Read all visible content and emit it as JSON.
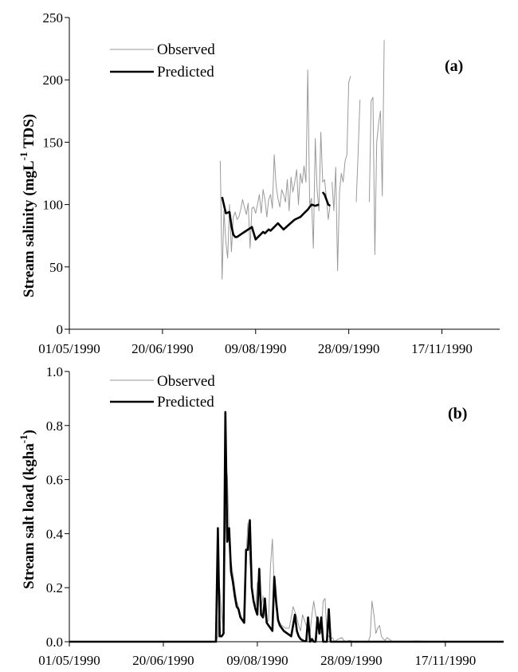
{
  "chart_data": [
    {
      "type": "line",
      "panel_label": "(a)",
      "ylabel": "Stream salinity (mgL",
      "ylabel_sup": "-1",
      "ylabel_tail": " TDS)",
      "ylim": [
        0,
        250
      ],
      "y_ticks": [
        "0",
        "50",
        "100",
        "150",
        "200",
        "250"
      ],
      "xlim": [
        "1990-05-01",
        "1990-12-18"
      ],
      "x_ticks": [
        "01/05/1990",
        "20/06/1990",
        "09/08/1990",
        "28/09/1990",
        "17/11/1990"
      ],
      "grid": false,
      "legend_position": "top-left",
      "series": [
        {
          "name": "Observed",
          "style": "thin-gray",
          "color": "#9a9a9a",
          "segments": [
            {
              "x": [
                "1990-07-21",
                "1990-07-22",
                "1990-07-23",
                "1990-07-24",
                "1990-07-25",
                "1990-07-26",
                "1990-07-27",
                "1990-07-28",
                "1990-07-29",
                "1990-07-30",
                "1990-07-31",
                "1990-08-01",
                "1990-08-02",
                "1990-08-03",
                "1990-08-04",
                "1990-08-05",
                "1990-08-06",
                "1990-08-07",
                "1990-08-08",
                "1990-08-09",
                "1990-08-10",
                "1990-08-11",
                "1990-08-12",
                "1990-08-13",
                "1990-08-14",
                "1990-08-15",
                "1990-08-16",
                "1990-08-17",
                "1990-08-18",
                "1990-08-19",
                "1990-08-20",
                "1990-08-21",
                "1990-08-22",
                "1990-08-23",
                "1990-08-24",
                "1990-08-25",
                "1990-08-26",
                "1990-08-27",
                "1990-08-28",
                "1990-08-29",
                "1990-08-30",
                "1990-08-31",
                "1990-09-01",
                "1990-09-02",
                "1990-09-03",
                "1990-09-04",
                "1990-09-05",
                "1990-09-06",
                "1990-09-07",
                "1990-09-08",
                "1990-09-09",
                "1990-09-10",
                "1990-09-11",
                "1990-09-12",
                "1990-09-13",
                "1990-09-14",
                "1990-09-15",
                "1990-09-16",
                "1990-09-17",
                "1990-09-18"
              ],
              "y": [
                135,
                40,
                95,
                70,
                57,
                100,
                62,
                90,
                94,
                88,
                90,
                96,
                104,
                98,
                92,
                101,
                65,
                97,
                98,
                93,
                100,
                108,
                93,
                112,
                104,
                90,
                104,
                108,
                97,
                140,
                115,
                105,
                98,
                112,
                108,
                102,
                120,
                95,
                122,
                110,
                118,
                128,
                100,
                125,
                117,
                131,
                118,
                208,
                100,
                105,
                65,
                153,
                112,
                95,
                158,
                118,
                120,
                105,
                88,
                100
              ]
            },
            {
              "x": [
                "1990-09-19",
                "1990-09-20",
                "1990-09-21",
                "1990-09-22",
                "1990-09-23",
                "1990-09-24",
                "1990-09-25",
                "1990-09-26",
                "1990-09-27",
                "1990-09-28",
                "1990-09-29"
              ],
              "y": [
                118,
                95,
                130,
                47,
                110,
                125,
                118,
                135,
                140,
                198,
                203
              ]
            },
            {
              "x": [
                "1990-10-02",
                "1990-10-03",
                "1990-10-04"
              ],
              "y": [
                102,
                140,
                184
              ]
            },
            {
              "x": [
                "1990-10-09",
                "1990-10-10",
                "1990-10-11",
                "1990-10-12",
                "1990-10-13",
                "1990-10-14",
                "1990-10-15",
                "1990-10-16",
                "1990-10-17"
              ],
              "y": [
                102,
                183,
                186,
                60,
                150,
                165,
                175,
                107,
                232
              ]
            }
          ]
        },
        {
          "name": "Predicted",
          "style": "thick-black",
          "color": "#000000",
          "segments": [
            {
              "x": [
                "1990-07-22",
                "1990-07-24",
                "1990-07-26",
                "1990-07-27",
                "1990-07-28",
                "1990-07-29",
                "1990-07-30",
                "1990-08-01",
                "1990-08-03",
                "1990-08-05",
                "1990-08-07",
                "1990-08-09",
                "1990-08-11",
                "1990-08-13",
                "1990-08-14",
                "1990-08-16",
                "1990-08-17",
                "1990-08-19",
                "1990-08-21",
                "1990-08-24",
                "1990-08-27",
                "1990-08-30",
                "1990-09-02",
                "1990-09-04",
                "1990-09-06",
                "1990-09-08",
                "1990-09-10",
                "1990-09-12"
              ],
              "y": [
                106,
                93,
                94,
                83,
                76,
                74,
                74,
                76,
                78,
                80,
                82,
                72,
                75,
                78,
                77,
                80,
                79,
                82,
                85,
                80,
                84,
                88,
                90,
                93,
                96,
                100,
                99,
                100
              ]
            },
            {
              "x": [
                "1990-09-14",
                "1990-09-15",
                "1990-09-16",
                "1990-09-17",
                "1990-09-18"
              ],
              "y": [
                110,
                108,
                104,
                100,
                99
              ]
            }
          ]
        }
      ]
    },
    {
      "type": "line",
      "panel_label": "(b)",
      "ylabel": "Stream salt load (kgha",
      "ylabel_sup": "-1",
      "ylabel_tail": ")",
      "ylim": [
        0,
        1.0
      ],
      "y_ticks": [
        "0.0",
        "0.2",
        "0.4",
        "0.6",
        "0.8",
        "1.0"
      ],
      "xlim": [
        "1990-05-01",
        "1990-12-18"
      ],
      "x_ticks": [
        "01/05/1990",
        "20/06/1990",
        "09/08/1990",
        "28/09/1990",
        "17/11/1990"
      ],
      "grid": false,
      "legend_position": "top-left",
      "series": [
        {
          "name": "Observed",
          "style": "thin-gray",
          "color": "#9a9a9a",
          "segments": [
            {
              "x": [
                "1990-05-01",
                "1990-07-18",
                "1990-07-19",
                "1990-07-20",
                "1990-07-21",
                "1990-07-22",
                "1990-07-23",
                "1990-07-24",
                "1990-07-25",
                "1990-07-26",
                "1990-07-27",
                "1990-07-28",
                "1990-07-29",
                "1990-07-30",
                "1990-07-31",
                "1990-08-02",
                "1990-08-03",
                "1990-08-04",
                "1990-08-05",
                "1990-08-06",
                "1990-08-07",
                "1990-08-08",
                "1990-08-09",
                "1990-08-10",
                "1990-08-11",
                "1990-08-12",
                "1990-08-13",
                "1990-08-14",
                "1990-08-15",
                "1990-08-16",
                "1990-08-17",
                "1990-08-18",
                "1990-08-19",
                "1990-08-20",
                "1990-08-21",
                "1990-08-22",
                "1990-08-24",
                "1990-08-26",
                "1990-08-28",
                "1990-08-30",
                "1990-08-31",
                "1990-09-01",
                "1990-09-02",
                "1990-09-04",
                "1990-09-05",
                "1990-09-06",
                "1990-09-07",
                "1990-09-08",
                "1990-09-09",
                "1990-09-10",
                "1990-09-11",
                "1990-09-12",
                "1990-09-13",
                "1990-09-14",
                "1990-09-15",
                "1990-09-16",
                "1990-09-17",
                "1990-09-18",
                "1990-09-19",
                "1990-09-21",
                "1990-09-23",
                "1990-09-24",
                "1990-09-25",
                "1990-09-27",
                "1990-09-29",
                "1990-10-01",
                "1990-10-03",
                "1990-10-06",
                "1990-10-07",
                "1990-10-08",
                "1990-10-09",
                "1990-10-10",
                "1990-10-11",
                "1990-10-12",
                "1990-10-13",
                "1990-10-14",
                "1990-10-15",
                "1990-10-16",
                "1990-10-17",
                "1990-10-18",
                "1990-10-20",
                "1990-10-25",
                "1990-10-28",
                "1990-11-01",
                "1990-11-10",
                "1990-11-20",
                "1990-12-01",
                "1990-12-18"
              ],
              "y": [
                0,
                0,
                0.02,
                0.2,
                0.1,
                0.05,
                0.4,
                0.62,
                0.4,
                0.3,
                0.25,
                0.2,
                0.15,
                0.13,
                0.1,
                0.07,
                0.32,
                0.44,
                0.3,
                0.2,
                0.15,
                0.12,
                0.22,
                0.2,
                0.12,
                0.17,
                0.1,
                0.07,
                0.08,
                0.28,
                0.38,
                0.2,
                0.12,
                0.09,
                0.07,
                0.06,
                0.05,
                0.05,
                0.13,
                0.09,
                0.06,
                0.04,
                0.1,
                0.06,
                0.05,
                0.03,
                0.1,
                0.15,
                0.1,
                0.07,
                0.05,
                0.03,
                0.15,
                0.16,
                0.03,
                0.02,
                0.01,
                0.015,
                0,
                0.01,
                0.015,
                0.005,
                0,
                0.005,
                0,
                0,
                0,
                0,
                0,
                0.02,
                0.15,
                0.1,
                0.03,
                0.05,
                0.06,
                0.02,
                0.01,
                0.005,
                0.015,
                0.01,
                0,
                0.002,
                0,
                0.003,
                0,
                0,
                0,
                0
              ]
            }
          ]
        },
        {
          "name": "Predicted",
          "style": "thick-black",
          "color": "#000000",
          "segments": [
            {
              "x": [
                "1990-05-01",
                "1990-07-18",
                "1990-07-19",
                "1990-07-20",
                "1990-07-21",
                "1990-07-22",
                "1990-07-23",
                "1990-07-24",
                "1990-07-25",
                "1990-07-26",
                "1990-07-27",
                "1990-07-28",
                "1990-07-29",
                "1990-07-30",
                "1990-07-31",
                "1990-08-01",
                "1990-08-02",
                "1990-08-03",
                "1990-08-04",
                "1990-08-05",
                "1990-08-06",
                "1990-08-07",
                "1990-08-08",
                "1990-08-09",
                "1990-08-10",
                "1990-08-11",
                "1990-08-12",
                "1990-08-13",
                "1990-08-14",
                "1990-08-15",
                "1990-08-16",
                "1990-08-17",
                "1990-08-18",
                "1990-08-19",
                "1990-08-20",
                "1990-08-21",
                "1990-08-22",
                "1990-08-23",
                "1990-08-25",
                "1990-08-27",
                "1990-08-29",
                "1990-08-30",
                "1990-08-31",
                "1990-09-01",
                "1990-09-02",
                "1990-09-03",
                "1990-09-04",
                "1990-09-05",
                "1990-09-06",
                "1990-09-07",
                "1990-09-08",
                "1990-09-09",
                "1990-09-10",
                "1990-09-11",
                "1990-09-12",
                "1990-09-13",
                "1990-09-14",
                "1990-09-15",
                "1990-09-16",
                "1990-09-17",
                "1990-12-18"
              ],
              "y": [
                0,
                0,
                0.42,
                0.02,
                0.02,
                0.03,
                0.85,
                0.37,
                0.42,
                0.26,
                0.22,
                0.17,
                0.13,
                0.12,
                0.09,
                0.08,
                0.07,
                0.34,
                0.34,
                0.45,
                0.2,
                0.15,
                0.12,
                0.1,
                0.27,
                0.1,
                0.09,
                0.16,
                0.07,
                0.06,
                0.05,
                0.04,
                0.24,
                0.15,
                0.08,
                0.06,
                0.05,
                0.04,
                0.03,
                0.02,
                0.1,
                0.04,
                0.02,
                0.01,
                0.005,
                0.002,
                0.002,
                0.09,
                0.0,
                0.01,
                0,
                0,
                0.09,
                0.03,
                0.09,
                0,
                0,
                0,
                0.12,
                0,
                0
              ]
            }
          ]
        }
      ]
    }
  ]
}
